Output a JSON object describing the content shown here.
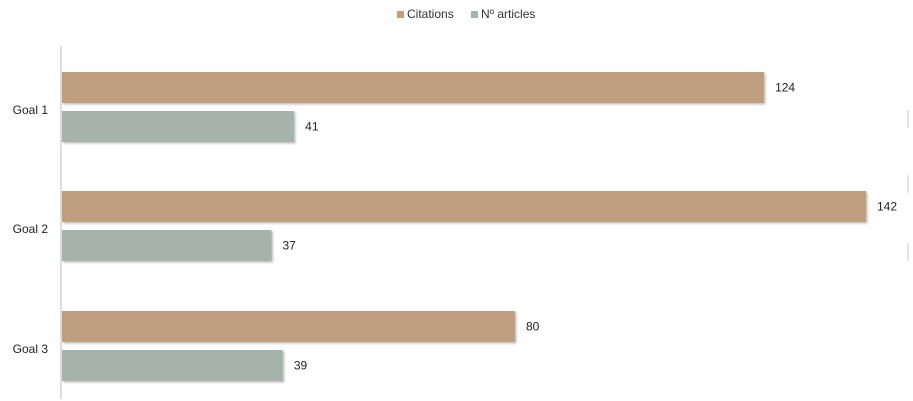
{
  "chart_data": {
    "type": "bar",
    "orientation": "horizontal",
    "categories": [
      "Goal 1",
      "Goal 2",
      "Goal 3"
    ],
    "series": [
      {
        "name": "Citations",
        "values": [
          124,
          142,
          80
        ],
        "color": "#bf9f80"
      },
      {
        "name": "Nº articles",
        "values": [
          41,
          37,
          39
        ],
        "color": "#a5b3ac"
      }
    ],
    "xlim": [
      0,
      142
    ],
    "grid": false,
    "legend": "top-center",
    "data_labels": true,
    "title": "",
    "xlabel": "",
    "ylabel": ""
  }
}
